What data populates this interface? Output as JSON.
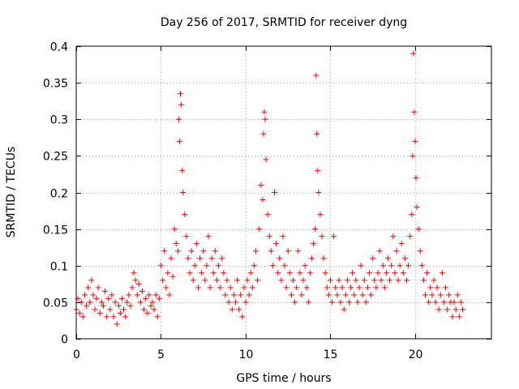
{
  "chart_data": {
    "type": "scatter",
    "title": "Day 256 of 2017, SRMTID for receiver dyng",
    "xlabel": "GPS time / hours",
    "ylabel": "SRMTID / TECUs",
    "xlim": [
      0,
      24.5
    ],
    "ylim": [
      0,
      0.4
    ],
    "xticks": [
      0,
      5,
      10,
      15,
      20
    ],
    "xtick_labels": [
      "0",
      "5",
      "10",
      "15",
      "20"
    ],
    "yticks": [
      0,
      0.05,
      0.1,
      0.15,
      0.2,
      0.25,
      0.3,
      0.35,
      0.4
    ],
    "ytick_labels": [
      "0",
      "0.05",
      "0.1",
      "0.15",
      "0.2",
      "0.25",
      "0.3",
      "0.35",
      "0.4"
    ],
    "grid": true,
    "marker": "+",
    "color": "#ff0000",
    "series": [
      {
        "name": "SRMTID",
        "points": [
          [
            0.0,
            0.04
          ],
          [
            0.1,
            0.055
          ],
          [
            0.2,
            0.035
          ],
          [
            0.3,
            0.05
          ],
          [
            0.4,
            0.03
          ],
          [
            0.5,
            0.06
          ],
          [
            0.6,
            0.045
          ],
          [
            0.7,
            0.07
          ],
          [
            0.8,
            0.05
          ],
          [
            0.9,
            0.08
          ],
          [
            1.0,
            0.06
          ],
          [
            1.1,
            0.04
          ],
          [
            1.2,
            0.055
          ],
          [
            1.3,
            0.07
          ],
          [
            1.4,
            0.035
          ],
          [
            1.5,
            0.05
          ],
          [
            1.6,
            0.045
          ],
          [
            1.7,
            0.065
          ],
          [
            1.8,
            0.03
          ],
          [
            1.9,
            0.055
          ],
          [
            2.0,
            0.04
          ],
          [
            2.1,
            0.06
          ],
          [
            2.2,
            0.03
          ],
          [
            2.3,
            0.05
          ],
          [
            2.4,
            0.02
          ],
          [
            2.5,
            0.045
          ],
          [
            2.6,
            0.035
          ],
          [
            2.7,
            0.055
          ],
          [
            2.8,
            0.04
          ],
          [
            2.9,
            0.03
          ],
          [
            3.0,
            0.05
          ],
          [
            3.1,
            0.06
          ],
          [
            3.2,
            0.045
          ],
          [
            3.3,
            0.07
          ],
          [
            3.4,
            0.09
          ],
          [
            3.5,
            0.08
          ],
          [
            3.6,
            0.06
          ],
          [
            3.7,
            0.075
          ],
          [
            3.8,
            0.05
          ],
          [
            3.9,
            0.065
          ],
          [
            4.0,
            0.04
          ],
          [
            4.1,
            0.055
          ],
          [
            4.2,
            0.035
          ],
          [
            4.3,
            0.06
          ],
          [
            4.4,
            0.045
          ],
          [
            4.5,
            0.05
          ],
          [
            4.6,
            0.04
          ],
          [
            4.7,
            0.06
          ],
          [
            4.8,
            0.03
          ],
          [
            4.9,
            0.055
          ],
          [
            5.0,
            0.1
          ],
          [
            5.1,
            0.08
          ],
          [
            5.2,
            0.12
          ],
          [
            5.3,
            0.07
          ],
          [
            5.4,
            0.09
          ],
          [
            5.5,
            0.06
          ],
          [
            5.6,
            0.11
          ],
          [
            5.7,
            0.085
          ],
          [
            5.8,
            0.15
          ],
          [
            5.9,
            0.13
          ],
          [
            6.0,
            0.12
          ],
          [
            6.05,
            0.3
          ],
          [
            6.1,
            0.27
          ],
          [
            6.15,
            0.335
          ],
          [
            6.2,
            0.32
          ],
          [
            6.25,
            0.23
          ],
          [
            6.3,
            0.2
          ],
          [
            6.4,
            0.17
          ],
          [
            6.5,
            0.14
          ],
          [
            6.6,
            0.11
          ],
          [
            6.7,
            0.09
          ],
          [
            6.8,
            0.12
          ],
          [
            6.9,
            0.08
          ],
          [
            7.0,
            0.1
          ],
          [
            7.1,
            0.13
          ],
          [
            7.2,
            0.07
          ],
          [
            7.3,
            0.11
          ],
          [
            7.4,
            0.09
          ],
          [
            7.5,
            0.12
          ],
          [
            7.6,
            0.08
          ],
          [
            7.7,
            0.1
          ],
          [
            7.8,
            0.14
          ],
          [
            7.9,
            0.07
          ],
          [
            8.0,
            0.11
          ],
          [
            8.1,
            0.09
          ],
          [
            8.2,
            0.12
          ],
          [
            8.3,
            0.08
          ],
          [
            8.4,
            0.1
          ],
          [
            8.5,
            0.07
          ],
          [
            8.6,
            0.11
          ],
          [
            8.7,
            0.09
          ],
          [
            8.8,
            0.06
          ],
          [
            8.9,
            0.08
          ],
          [
            9.0,
            0.05
          ],
          [
            9.1,
            0.07
          ],
          [
            9.2,
            0.04
          ],
          [
            9.3,
            0.06
          ],
          [
            9.4,
            0.05
          ],
          [
            9.5,
            0.08
          ],
          [
            9.6,
            0.04
          ],
          [
            9.7,
            0.06
          ],
          [
            9.8,
            0.03
          ],
          [
            9.9,
            0.07
          ],
          [
            10.0,
            0.05
          ],
          [
            10.1,
            0.08
          ],
          [
            10.2,
            0.06
          ],
          [
            10.3,
            0.09
          ],
          [
            10.4,
            0.07
          ],
          [
            10.5,
            0.1
          ],
          [
            10.6,
            0.12
          ],
          [
            10.7,
            0.08
          ],
          [
            10.8,
            0.15
          ],
          [
            10.9,
            0.21
          ],
          [
            11.0,
            0.19
          ],
          [
            11.05,
            0.28
          ],
          [
            11.1,
            0.31
          ],
          [
            11.15,
            0.3
          ],
          [
            11.2,
            0.245
          ],
          [
            11.3,
            0.17
          ],
          [
            11.4,
            0.14
          ],
          [
            11.5,
            0.12
          ],
          [
            11.6,
            0.1
          ],
          [
            11.7,
            0.2
          ],
          [
            11.8,
            0.13
          ],
          [
            11.9,
            0.09
          ],
          [
            12.0,
            0.11
          ],
          [
            12.1,
            0.08
          ],
          [
            12.2,
            0.14
          ],
          [
            12.3,
            0.1
          ],
          [
            12.4,
            0.07
          ],
          [
            12.5,
            0.12
          ],
          [
            12.6,
            0.09
          ],
          [
            12.7,
            0.06
          ],
          [
            12.8,
            0.08
          ],
          [
            12.9,
            0.05
          ],
          [
            13.0,
            0.07
          ],
          [
            13.1,
            0.12
          ],
          [
            13.2,
            0.09
          ],
          [
            13.3,
            0.06
          ],
          [
            13.4,
            0.08
          ],
          [
            13.5,
            0.1
          ],
          [
            13.6,
            0.07
          ],
          [
            13.7,
            0.05
          ],
          [
            13.8,
            0.09
          ],
          [
            13.9,
            0.11
          ],
          [
            14.0,
            0.13
          ],
          [
            14.1,
            0.15
          ],
          [
            14.15,
            0.36
          ],
          [
            14.2,
            0.28
          ],
          [
            14.25,
            0.23
          ],
          [
            14.3,
            0.2
          ],
          [
            14.4,
            0.17
          ],
          [
            14.5,
            0.14
          ],
          [
            14.6,
            0.11
          ],
          [
            14.7,
            0.09
          ],
          [
            14.8,
            0.07
          ],
          [
            14.9,
            0.06
          ],
          [
            15.0,
            0.08
          ],
          [
            15.1,
            0.05
          ],
          [
            15.2,
            0.14
          ],
          [
            15.3,
            0.07
          ],
          [
            15.4,
            0.06
          ],
          [
            15.5,
            0.08
          ],
          [
            15.6,
            0.05
          ],
          [
            15.7,
            0.07
          ],
          [
            15.8,
            0.04
          ],
          [
            15.9,
            0.06
          ],
          [
            16.0,
            0.08
          ],
          [
            16.1,
            0.05
          ],
          [
            16.2,
            0.07
          ],
          [
            16.3,
            0.09
          ],
          [
            16.4,
            0.06
          ],
          [
            16.5,
            0.08
          ],
          [
            16.6,
            0.05
          ],
          [
            16.7,
            0.07
          ],
          [
            16.8,
            0.1
          ],
          [
            16.9,
            0.06
          ],
          [
            17.0,
            0.08
          ],
          [
            17.1,
            0.05
          ],
          [
            17.2,
            0.07
          ],
          [
            17.3,
            0.09
          ],
          [
            17.4,
            0.06
          ],
          [
            17.5,
            0.11
          ],
          [
            17.6,
            0.08
          ],
          [
            17.7,
            0.07
          ],
          [
            17.8,
            0.09
          ],
          [
            17.9,
            0.12
          ],
          [
            18.0,
            0.08
          ],
          [
            18.1,
            0.1
          ],
          [
            18.2,
            0.07
          ],
          [
            18.3,
            0.09
          ],
          [
            18.4,
            0.11
          ],
          [
            18.5,
            0.08
          ],
          [
            18.6,
            0.1
          ],
          [
            18.7,
            0.14
          ],
          [
            18.8,
            0.09
          ],
          [
            18.9,
            0.12
          ],
          [
            19.0,
            0.08
          ],
          [
            19.1,
            0.1
          ],
          [
            19.2,
            0.13
          ],
          [
            19.3,
            0.09
          ],
          [
            19.4,
            0.11
          ],
          [
            19.5,
            0.08
          ],
          [
            19.6,
            0.1
          ],
          [
            19.7,
            0.14
          ],
          [
            19.8,
            0.17
          ],
          [
            19.85,
            0.25
          ],
          [
            19.9,
            0.39
          ],
          [
            19.95,
            0.31
          ],
          [
            20.0,
            0.27
          ],
          [
            20.05,
            0.22
          ],
          [
            20.1,
            0.18
          ],
          [
            20.2,
            0.15
          ],
          [
            20.3,
            0.12
          ],
          [
            20.4,
            0.1
          ],
          [
            20.5,
            0.08
          ],
          [
            20.6,
            0.06
          ],
          [
            20.7,
            0.09
          ],
          [
            20.8,
            0.05
          ],
          [
            20.9,
            0.07
          ],
          [
            21.0,
            0.06
          ],
          [
            21.1,
            0.08
          ],
          [
            21.2,
            0.05
          ],
          [
            21.3,
            0.07
          ],
          [
            21.4,
            0.04
          ],
          [
            21.5,
            0.06
          ],
          [
            21.6,
            0.09
          ],
          [
            21.7,
            0.05
          ],
          [
            21.8,
            0.07
          ],
          [
            21.9,
            0.04
          ],
          [
            22.0,
            0.06
          ],
          [
            22.1,
            0.05
          ],
          [
            22.2,
            0.03
          ],
          [
            22.3,
            0.05
          ],
          [
            22.4,
            0.04
          ],
          [
            22.5,
            0.06
          ],
          [
            22.6,
            0.03
          ],
          [
            22.7,
            0.05
          ],
          [
            22.8,
            0.04
          ]
        ]
      }
    ]
  }
}
